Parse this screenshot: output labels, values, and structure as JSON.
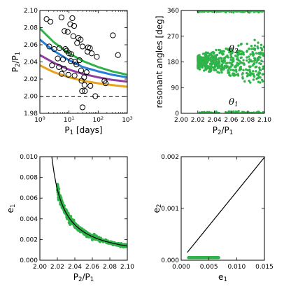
{
  "chart_data": [
    {
      "id": "a",
      "type": "scatter+line",
      "title": "",
      "xlabel": "P_1 [days]",
      "ylabel": "P_2/P_1",
      "xscale": "log",
      "xlim": [
        1,
        1000
      ],
      "ylim": [
        1.98,
        2.1
      ],
      "xticks": [
        1,
        10,
        100,
        1000
      ],
      "xtick_labels": [
        "10^0",
        "10^1",
        "10^2",
        "10^3"
      ],
      "yticks": [
        1.98,
        2.0,
        2.02,
        2.04,
        2.06,
        2.08,
        2.1
      ],
      "ytick_labels": [
        "1.98",
        "2.00",
        "2.02",
        "2.04",
        "2.06",
        "2.08",
        "2.10"
      ],
      "reference_line": {
        "y": 2.0,
        "style": "dashed",
        "color": "#000000"
      },
      "curves": [
        {
          "color": "#2fb34a",
          "x": [
            1,
            3,
            10,
            30,
            100,
            300,
            1000
          ],
          "y": [
            2.079,
            2.063,
            2.05,
            2.041,
            2.034,
            2.029,
            2.025
          ]
        },
        {
          "color": "#2a7dd6",
          "x": [
            1,
            3,
            10,
            30,
            100,
            300,
            1000
          ],
          "y": [
            2.066,
            2.053,
            2.042,
            2.034,
            2.029,
            2.025,
            2.022
          ]
        },
        {
          "color": "#8e3fa0",
          "x": [
            1,
            3,
            10,
            30,
            100,
            300,
            1000
          ],
          "y": [
            2.048,
            2.039,
            2.031,
            2.026,
            2.022,
            2.019,
            2.017
          ]
        },
        {
          "color": "#e7a31b",
          "x": [
            1,
            3,
            10,
            30,
            100,
            300,
            1000
          ],
          "y": [
            2.036,
            2.028,
            2.022,
            2.018,
            2.015,
            2.013,
            2.011
          ]
        }
      ],
      "points": [
        [
          1.7,
          2.09
        ],
        [
          2.3,
          2.087
        ],
        [
          5.5,
          2.092
        ],
        [
          13.0,
          2.091
        ],
        [
          11.0,
          2.084
        ],
        [
          15.0,
          2.082
        ],
        [
          7.0,
          2.076
        ],
        [
          9.0,
          2.075
        ],
        [
          14.0,
          2.07
        ],
        [
          21.0,
          2.068
        ],
        [
          25.0,
          2.066
        ],
        [
          19.0,
          2.062
        ],
        [
          29.0,
          2.058
        ],
        [
          2.1,
          2.058
        ],
        [
          3.1,
          2.055
        ],
        [
          4.7,
          2.056
        ],
        [
          7.5,
          2.055
        ],
        [
          8.3,
          2.053
        ],
        [
          10.0,
          2.05
        ],
        [
          12.0,
          2.049
        ],
        [
          45.0,
          2.057
        ],
        [
          52.0,
          2.056
        ],
        [
          43.0,
          2.052
        ],
        [
          60.0,
          2.05
        ],
        [
          90.0,
          2.046
        ],
        [
          4.1,
          2.044
        ],
        [
          6.2,
          2.043
        ],
        [
          11.5,
          2.041
        ],
        [
          16.0,
          2.04
        ],
        [
          23.0,
          2.042
        ],
        [
          2.6,
          2.036
        ],
        [
          4.5,
          2.034
        ],
        [
          6.8,
          2.032
        ],
        [
          18.0,
          2.037
        ],
        [
          26.0,
          2.03
        ],
        [
          40.0,
          2.028
        ],
        [
          5.6,
          2.026
        ],
        [
          9.5,
          2.025
        ],
        [
          15.5,
          2.024
        ],
        [
          33.0,
          2.022
        ],
        [
          27.0,
          2.018
        ],
        [
          34.0,
          2.013
        ],
        [
          28.0,
          2.006
        ],
        [
          35.0,
          2.006
        ],
        [
          54.0,
          2.012
        ],
        [
          80.0,
          2.0
        ],
        [
          29.0,
          1.987
        ],
        [
          165.0,
          2.018
        ],
        [
          180.0,
          2.015
        ],
        [
          320.0,
          2.071
        ],
        [
          480.0,
          2.048
        ]
      ]
    },
    {
      "id": "b",
      "type": "scatter",
      "xlabel": "P_2/P_1",
      "ylabel": "resonant angles [deg]",
      "xlim": [
        2.0,
        2.1
      ],
      "ylim": [
        0,
        360
      ],
      "xticks": [
        2.0,
        2.02,
        2.04,
        2.06,
        2.08,
        2.1
      ],
      "xtick_labels": [
        "2.00",
        "2.02",
        "2.04",
        "2.06",
        "2.08",
        "2.10"
      ],
      "yticks": [
        0,
        90,
        180,
        270,
        360
      ],
      "ytick_labels": [
        "0",
        "90",
        "180",
        "270",
        "360"
      ],
      "color": "#2fb34a",
      "annotations": [
        {
          "text": "θ",
          "sub": "2",
          "x": 2.063,
          "y": 215
        },
        {
          "text": "θ",
          "sub": "1",
          "x": 2.063,
          "y": 30
        }
      ],
      "series": [
        {
          "name": "θ1",
          "x_range": [
            2.02,
            2.1
          ],
          "y_around": 0,
          "spread_deg": 4,
          "wraps_to_360": true
        },
        {
          "name": "θ2",
          "x_range": [
            2.02,
            2.1
          ],
          "y_center": 180,
          "spread_at_x_min": 25,
          "spread_at_x_max": 90
        }
      ]
    },
    {
      "id": "c",
      "type": "scatter+line",
      "xlabel": "P_2/P_1",
      "ylabel": "e_1",
      "xlim": [
        2.0,
        2.1
      ],
      "ylim": [
        0.0,
        0.01
      ],
      "xticks": [
        2.0,
        2.02,
        2.04,
        2.06,
        2.08,
        2.1
      ],
      "xtick_labels": [
        "2.00",
        "2.02",
        "2.04",
        "2.06",
        "2.08",
        "2.10"
      ],
      "yticks": [
        0.0,
        0.002,
        0.004,
        0.006,
        0.008,
        0.01
      ],
      "ytick_labels": [
        "0.000",
        "0.002",
        "0.004",
        "0.006",
        "0.008",
        "0.010"
      ],
      "color": "#2fb34a",
      "curve": {
        "form": "e1 = A / (P2/P1 - 2)",
        "A": 0.000137,
        "color": "#000000"
      },
      "scatter_x_range": [
        2.02,
        2.1
      ]
    },
    {
      "id": "d",
      "type": "scatter+line",
      "xlabel": "e_1",
      "ylabel": "e_2",
      "xlim": [
        0.0,
        0.015
      ],
      "ylim": [
        0.0,
        0.002
      ],
      "xticks": [
        0.0,
        0.005,
        0.01,
        0.015
      ],
      "xtick_labels": [
        "0.000",
        "0.005",
        "0.010",
        "0.015"
      ],
      "yticks": [
        0.0,
        0.001,
        0.002
      ],
      "ytick_labels": [
        "0.000",
        "0.001",
        "0.002"
      ],
      "color": "#2fb34a",
      "line": {
        "x": [
          0.0011,
          0.0151
        ],
        "y": [
          0.00015,
          0.002
        ],
        "color": "#000000"
      },
      "scatter_x_range": [
        0.0013,
        0.0068
      ],
      "scatter_slope": 0.000141
    }
  ]
}
